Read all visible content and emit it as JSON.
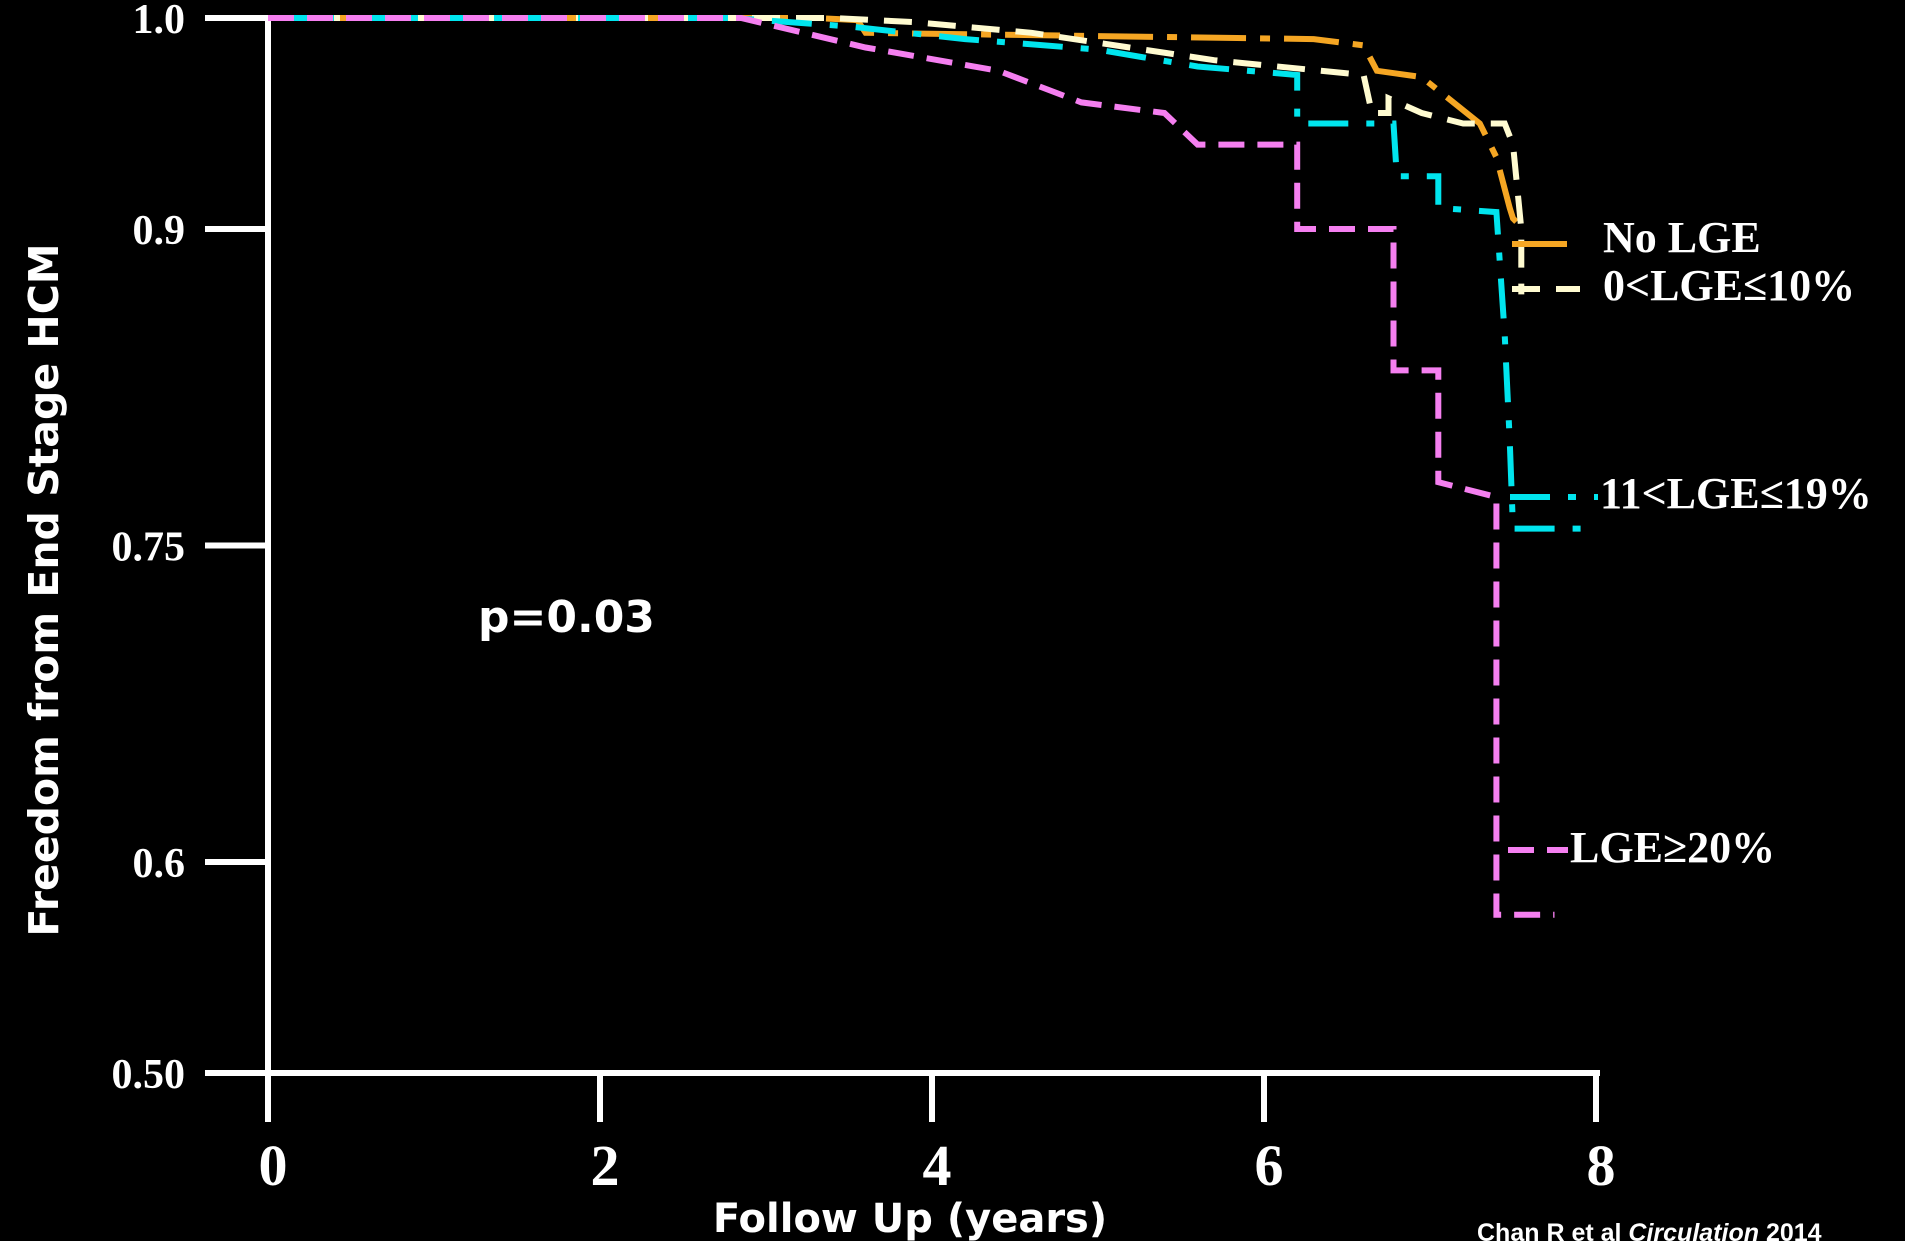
{
  "chart_data": {
    "type": "line",
    "title": "",
    "xlabel": "Follow Up (years)",
    "ylabel": "Freedom from End Stage HCM",
    "xlim": [
      0,
      8
    ],
    "ylim": [
      0.5,
      1.0
    ],
    "x_ticks": [
      0,
      2,
      4,
      6,
      8
    ],
    "x_tick_labels": [
      "0",
      "2",
      "4",
      "6",
      "8"
    ],
    "y_ticks": [
      1.0,
      0.9,
      0.75,
      0.6,
      0.5
    ],
    "y_tick_labels": [
      "1.0",
      "0.9",
      "0.75",
      "0.6",
      "0.50"
    ],
    "grid": false,
    "background": "#000000",
    "annotation": "p=0.03",
    "citation": {
      "authors": "Chan R et al ",
      "journal": "Circulation",
      "year": " 2014"
    },
    "series": [
      {
        "name": "No LGE",
        "color": "#f5a623",
        "dash": "55 14 10 14",
        "points": [
          [
            0,
            1.0
          ],
          [
            3.3,
            1.0
          ],
          [
            3.55,
            0.999
          ],
          [
            3.6,
            0.993
          ],
          [
            4.5,
            0.992
          ],
          [
            6.3,
            0.99
          ],
          [
            6.6,
            0.987
          ],
          [
            6.68,
            0.975
          ],
          [
            6.95,
            0.972
          ],
          [
            7.3,
            0.95
          ],
          [
            7.4,
            0.934
          ],
          [
            7.48,
            0.91
          ],
          [
            7.5,
            0.905
          ],
          [
            7.55,
            0.901
          ]
        ]
      },
      {
        "name": "0<LGE≤10%",
        "color": "#fffbd0",
        "dash": "28 16",
        "points": [
          [
            0,
            1.0
          ],
          [
            3.4,
            1.0
          ],
          [
            3.9,
            0.998
          ],
          [
            4.6,
            0.993
          ],
          [
            5.7,
            0.98
          ],
          [
            6.6,
            0.973
          ],
          [
            6.65,
            0.955
          ],
          [
            6.75,
            0.955
          ],
          [
            6.75,
            0.962
          ],
          [
            6.95,
            0.955
          ],
          [
            7.2,
            0.95
          ],
          [
            7.45,
            0.95
          ],
          [
            7.5,
            0.94
          ],
          [
            7.55,
            0.9
          ],
          [
            7.55,
            0.869
          ]
        ]
      },
      {
        "name": "11<LGE≤19%",
        "color": "#00e5ee",
        "dash": "40 18 8 18",
        "points": [
          [
            0,
            1.0
          ],
          [
            2.8,
            1.0
          ],
          [
            3.5,
            0.996
          ],
          [
            4.2,
            0.99
          ],
          [
            5.0,
            0.985
          ],
          [
            5.6,
            0.977
          ],
          [
            6.2,
            0.973
          ],
          [
            6.2,
            0.95
          ],
          [
            6.78,
            0.95
          ],
          [
            6.8,
            0.925
          ],
          [
            7.05,
            0.925
          ],
          [
            7.05,
            0.91
          ],
          [
            7.4,
            0.908
          ],
          [
            7.45,
            0.85
          ],
          [
            7.48,
            0.8
          ],
          [
            7.5,
            0.758
          ],
          [
            7.95,
            0.758
          ]
        ]
      },
      {
        "name": "LGE≥20%",
        "color": "#f57ff0",
        "dash": "26 13",
        "points": [
          [
            0,
            1.0
          ],
          [
            2.85,
            1.0
          ],
          [
            3.6,
            0.986
          ],
          [
            4.4,
            0.975
          ],
          [
            4.9,
            0.96
          ],
          [
            5.4,
            0.955
          ],
          [
            5.6,
            0.94
          ],
          [
            6.2,
            0.94
          ],
          [
            6.2,
            0.9
          ],
          [
            6.78,
            0.9
          ],
          [
            6.78,
            0.833
          ],
          [
            7.05,
            0.833
          ],
          [
            7.05,
            0.78
          ],
          [
            7.4,
            0.773
          ],
          [
            7.4,
            0.575
          ],
          [
            7.75,
            0.575
          ]
        ]
      }
    ]
  }
}
